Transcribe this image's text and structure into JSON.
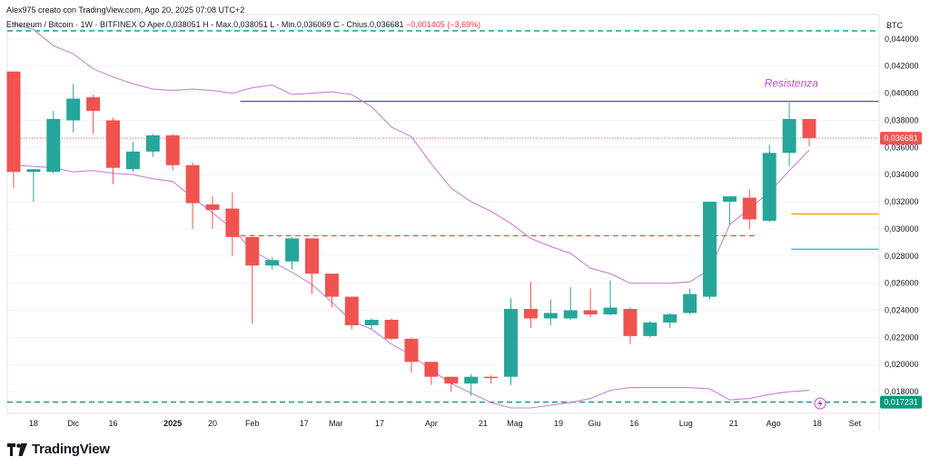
{
  "header": {
    "attribution": "Alex975 creato con TradingView.com, Ago 20, 2025 07:08 UTC+2"
  },
  "legend": {
    "symbol": "Ethereum / Bitcoin · 1W · BITFINEX",
    "open_label": "O",
    "open": "Aper.0,038051",
    "high": "H - Max.0,038051",
    "low": "L - Min.0,036069",
    "close": "C - Chius.0,036681",
    "change": "−0,001405 (−3,69%)"
  },
  "branding": {
    "name": "TradingView"
  },
  "colors": {
    "up": "#26a69a",
    "down": "#ef5350",
    "band": "#c982d4",
    "resistance": "#5b4fc7",
    "green_level": "#089981",
    "orange_level": "#f7a600",
    "teal_level": "#26c6da",
    "red_level": "#ef5350"
  },
  "chart_data": {
    "type": "candlestick",
    "currency": "BTC",
    "ylim": [
      0.0164,
      0.0458
    ],
    "y_ticks": [
      "0,044000",
      "0,042000",
      "0,040000",
      "0,038000",
      "0,036000",
      "0,034000",
      "0,032000",
      "0,030000",
      "0,028000",
      "0,026000",
      "0,024000",
      "0,022000",
      "0,020000",
      "0,018000"
    ],
    "y_tick_values": [
      0.044,
      0.042,
      0.04,
      0.038,
      0.036,
      0.034,
      0.032,
      0.03,
      0.028,
      0.026,
      0.024,
      0.022,
      0.02,
      0.018
    ],
    "x_ticks": [
      {
        "label": "18",
        "i": 1
      },
      {
        "label": "Dic",
        "i": 3
      },
      {
        "label": "16",
        "i": 5
      },
      {
        "label": "2025",
        "i": 8,
        "bold": true
      },
      {
        "label": "20",
        "i": 10
      },
      {
        "label": "Feb",
        "i": 12
      },
      {
        "label": "17",
        "i": 14.6
      },
      {
        "label": "Mar",
        "i": 16.2
      },
      {
        "label": "17",
        "i": 18.4
      },
      {
        "label": "Apr",
        "i": 21
      },
      {
        "label": "21",
        "i": 23.6
      },
      {
        "label": "Mag",
        "i": 25.2
      },
      {
        "label": "19",
        "i": 27.4
      },
      {
        "label": "Giu",
        "i": 29.2
      },
      {
        "label": "16",
        "i": 31.2
      },
      {
        "label": "Lug",
        "i": 33.8
      },
      {
        "label": "21",
        "i": 36.2
      },
      {
        "label": "Ago",
        "i": 38.2
      },
      {
        "label": "18",
        "i": 40.4
      },
      {
        "label": "Set",
        "i": 42.3
      }
    ],
    "candles": [
      {
        "o": 0.0416,
        "h": 0.0416,
        "l": 0.033,
        "c": 0.0342
      },
      {
        "o": 0.0342,
        "h": 0.0344,
        "l": 0.032,
        "c": 0.0344
      },
      {
        "o": 0.0342,
        "h": 0.0387,
        "l": 0.0341,
        "c": 0.0381
      },
      {
        "o": 0.038,
        "h": 0.0407,
        "l": 0.0371,
        "c": 0.0396
      },
      {
        "o": 0.0397,
        "h": 0.0399,
        "l": 0.037,
        "c": 0.0387
      },
      {
        "o": 0.038,
        "h": 0.0382,
        "l": 0.0333,
        "c": 0.0345
      },
      {
        "o": 0.0344,
        "h": 0.0364,
        "l": 0.0342,
        "c": 0.0357
      },
      {
        "o": 0.0357,
        "h": 0.037,
        "l": 0.0353,
        "c": 0.0369
      },
      {
        "o": 0.0369,
        "h": 0.037,
        "l": 0.0343,
        "c": 0.0347
      },
      {
        "o": 0.0347,
        "h": 0.0349,
        "l": 0.03,
        "c": 0.0319
      },
      {
        "o": 0.0318,
        "h": 0.0324,
        "l": 0.03,
        "c": 0.0314
      },
      {
        "o": 0.0315,
        "h": 0.0327,
        "l": 0.028,
        "c": 0.0294
      },
      {
        "o": 0.0294,
        "h": 0.0294,
        "l": 0.023,
        "c": 0.0273
      },
      {
        "o": 0.0273,
        "h": 0.0279,
        "l": 0.027,
        "c": 0.0277
      },
      {
        "o": 0.0276,
        "h": 0.0294,
        "l": 0.027,
        "c": 0.0293
      },
      {
        "o": 0.0293,
        "h": 0.0293,
        "l": 0.0252,
        "c": 0.0267
      },
      {
        "o": 0.0267,
        "h": 0.0267,
        "l": 0.0242,
        "c": 0.025
      },
      {
        "o": 0.025,
        "h": 0.025,
        "l": 0.0226,
        "c": 0.0229
      },
      {
        "o": 0.0229,
        "h": 0.0234,
        "l": 0.0226,
        "c": 0.0233
      },
      {
        "o": 0.0233,
        "h": 0.0234,
        "l": 0.0218,
        "c": 0.0219
      },
      {
        "o": 0.0219,
        "h": 0.022,
        "l": 0.0194,
        "c": 0.0202
      },
      {
        "o": 0.0202,
        "h": 0.0202,
        "l": 0.0185,
        "c": 0.0191
      },
      {
        "o": 0.0191,
        "h": 0.0191,
        "l": 0.018,
        "c": 0.0186
      },
      {
        "o": 0.0186,
        "h": 0.0193,
        "l": 0.0177,
        "c": 0.0191
      },
      {
        "o": 0.0191,
        "h": 0.0192,
        "l": 0.0186,
        "c": 0.019
      },
      {
        "o": 0.0191,
        "h": 0.0249,
        "l": 0.0185,
        "c": 0.0241
      },
      {
        "o": 0.0241,
        "h": 0.0261,
        "l": 0.0227,
        "c": 0.0234
      },
      {
        "o": 0.0234,
        "h": 0.0248,
        "l": 0.0229,
        "c": 0.0238
      },
      {
        "o": 0.0234,
        "h": 0.0257,
        "l": 0.0233,
        "c": 0.024
      },
      {
        "o": 0.024,
        "h": 0.0256,
        "l": 0.0235,
        "c": 0.0237
      },
      {
        "o": 0.0237,
        "h": 0.0262,
        "l": 0.0236,
        "c": 0.0242
      },
      {
        "o": 0.0241,
        "h": 0.0242,
        "l": 0.0215,
        "c": 0.0221
      },
      {
        "o": 0.0221,
        "h": 0.0232,
        "l": 0.022,
        "c": 0.0231
      },
      {
        "o": 0.0231,
        "h": 0.0238,
        "l": 0.0227,
        "c": 0.0237
      },
      {
        "o": 0.0238,
        "h": 0.0256,
        "l": 0.0237,
        "c": 0.0252
      },
      {
        "o": 0.025,
        "h": 0.032,
        "l": 0.0248,
        "c": 0.032
      },
      {
        "o": 0.032,
        "h": 0.0324,
        "l": 0.0303,
        "c": 0.0324
      },
      {
        "o": 0.0323,
        "h": 0.0329,
        "l": 0.03,
        "c": 0.0307
      },
      {
        "o": 0.0306,
        "h": 0.0362,
        "l": 0.0305,
        "c": 0.0356
      },
      {
        "o": 0.0356,
        "h": 0.0393,
        "l": 0.0346,
        "c": 0.0381
      },
      {
        "o": 0.0381,
        "h": 0.0381,
        "l": 0.0361,
        "c": 0.0367
      }
    ],
    "upper_band": [
      0.0451,
      0.0447,
      0.0435,
      0.0429,
      0.0418,
      0.0412,
      0.0407,
      0.0403,
      0.0402,
      0.0403,
      0.0402,
      0.04,
      0.0404,
      0.0406,
      0.0399,
      0.04,
      0.0401,
      0.0399,
      0.039,
      0.0375,
      0.0368,
      0.0348,
      0.033,
      0.032,
      0.0313,
      0.0304,
      0.0293,
      0.0287,
      0.0282,
      0.0271,
      0.0267,
      0.026,
      0.026,
      0.026,
      0.0261,
      0.027,
      0.0303,
      0.0315,
      0.0327,
      0.0343,
      0.0358
    ],
    "lower_band": [
      0.0347,
      0.0346,
      0.0345,
      0.0342,
      0.0343,
      0.0341,
      0.034,
      0.0337,
      0.0335,
      0.0323,
      0.0312,
      0.03,
      0.0284,
      0.0276,
      0.0268,
      0.0259,
      0.0246,
      0.0232,
      0.0226,
      0.0215,
      0.0207,
      0.0196,
      0.0186,
      0.0179,
      0.0172,
      0.0168,
      0.0168,
      0.017,
      0.0172,
      0.0175,
      0.0181,
      0.0183,
      0.0183,
      0.0183,
      0.0183,
      0.0182,
      0.0174,
      0.0175,
      0.0178,
      0.018,
      0.0181
    ],
    "levels": [
      {
        "value": 0.0446,
        "style": "dashed",
        "color": "#089981",
        "from": 0
      },
      {
        "value": 0.0394,
        "style": "solid",
        "color": "#5b4fc7",
        "from": 11.4,
        "label": "Resistenza"
      },
      {
        "value": 0.03668,
        "style": "dotted",
        "color": "#ef5350",
        "from": 0
      },
      {
        "value": 0.0295,
        "style": "dashed",
        "color": "#ef5350",
        "from": 11.4,
        "to": 37.4
      },
      {
        "value": 0.0311,
        "style": "solid",
        "color": "#f7a600",
        "from": 39.1
      },
      {
        "value": 0.0285,
        "style": "solid",
        "color": "#26c6da",
        "from": 39.1
      },
      {
        "value": 0.01723,
        "style": "dashed",
        "color": "#089981",
        "from": 0
      }
    ],
    "last_price_label": "0,036681",
    "bottom_label": "0,017231"
  }
}
